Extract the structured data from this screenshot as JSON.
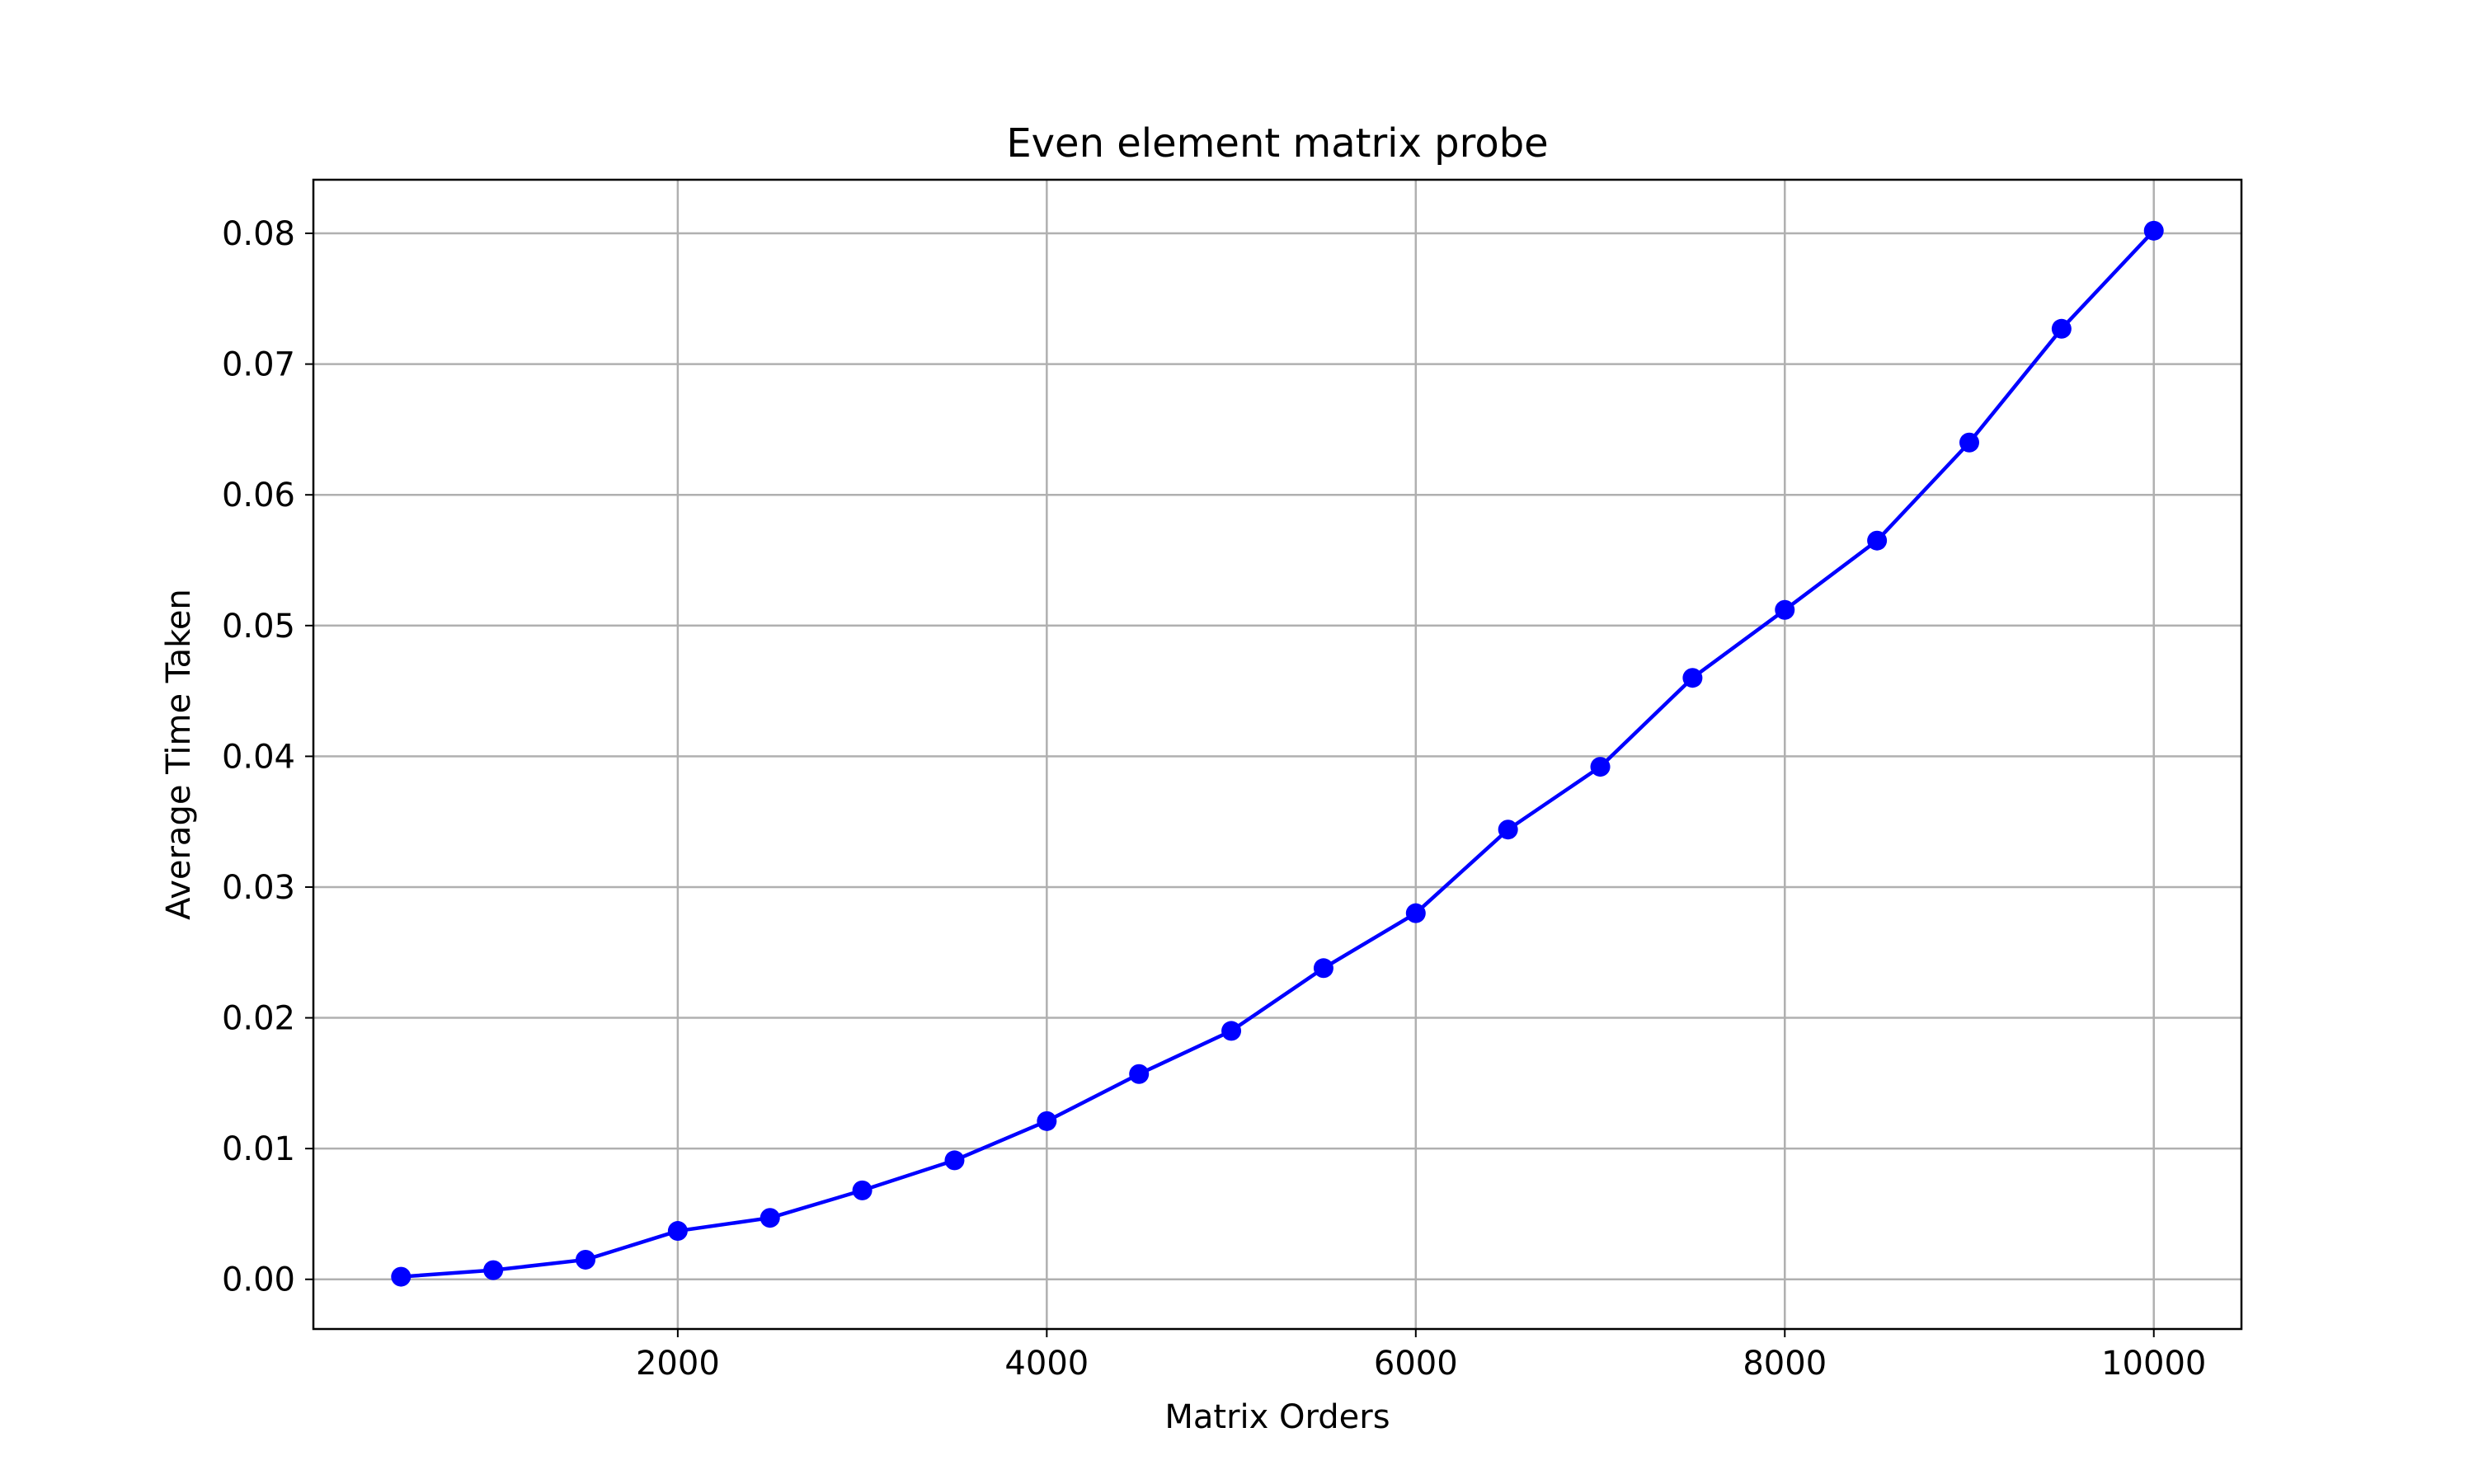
{
  "chart_data": {
    "type": "line",
    "title": "Even element matrix probe",
    "xlabel": "Matrix Orders",
    "ylabel": "Average Time Taken",
    "xlim": [
      25,
      10475
    ],
    "ylim": [
      -0.0038,
      0.0841
    ],
    "x_ticks": [
      2000,
      4000,
      6000,
      8000,
      10000
    ],
    "x_tick_labels": [
      "2000",
      "4000",
      "6000",
      "8000",
      "10000"
    ],
    "y_ticks": [
      0.0,
      0.01,
      0.02,
      0.03,
      0.04,
      0.05,
      0.06,
      0.07,
      0.08
    ],
    "y_tick_labels": [
      "0.00",
      "0.01",
      "0.02",
      "0.03",
      "0.04",
      "0.05",
      "0.06",
      "0.07",
      "0.08"
    ],
    "grid": true,
    "legend": "none",
    "series": [
      {
        "name": "Even element matrix probe",
        "color": "#0000ff",
        "marker": "circle",
        "x": [
          500,
          1000,
          1500,
          2000,
          2500,
          3000,
          3500,
          4000,
          4500,
          5000,
          5500,
          6000,
          6500,
          7000,
          7500,
          8000,
          8500,
          9000,
          9500,
          10000
        ],
        "y": [
          0.0002,
          0.0007,
          0.0015,
          0.0037,
          0.0047,
          0.0068,
          0.0091,
          0.0121,
          0.0157,
          0.019,
          0.0238,
          0.028,
          0.0344,
          0.0392,
          0.046,
          0.0512,
          0.0565,
          0.064,
          0.0727,
          0.0802
        ]
      }
    ]
  }
}
